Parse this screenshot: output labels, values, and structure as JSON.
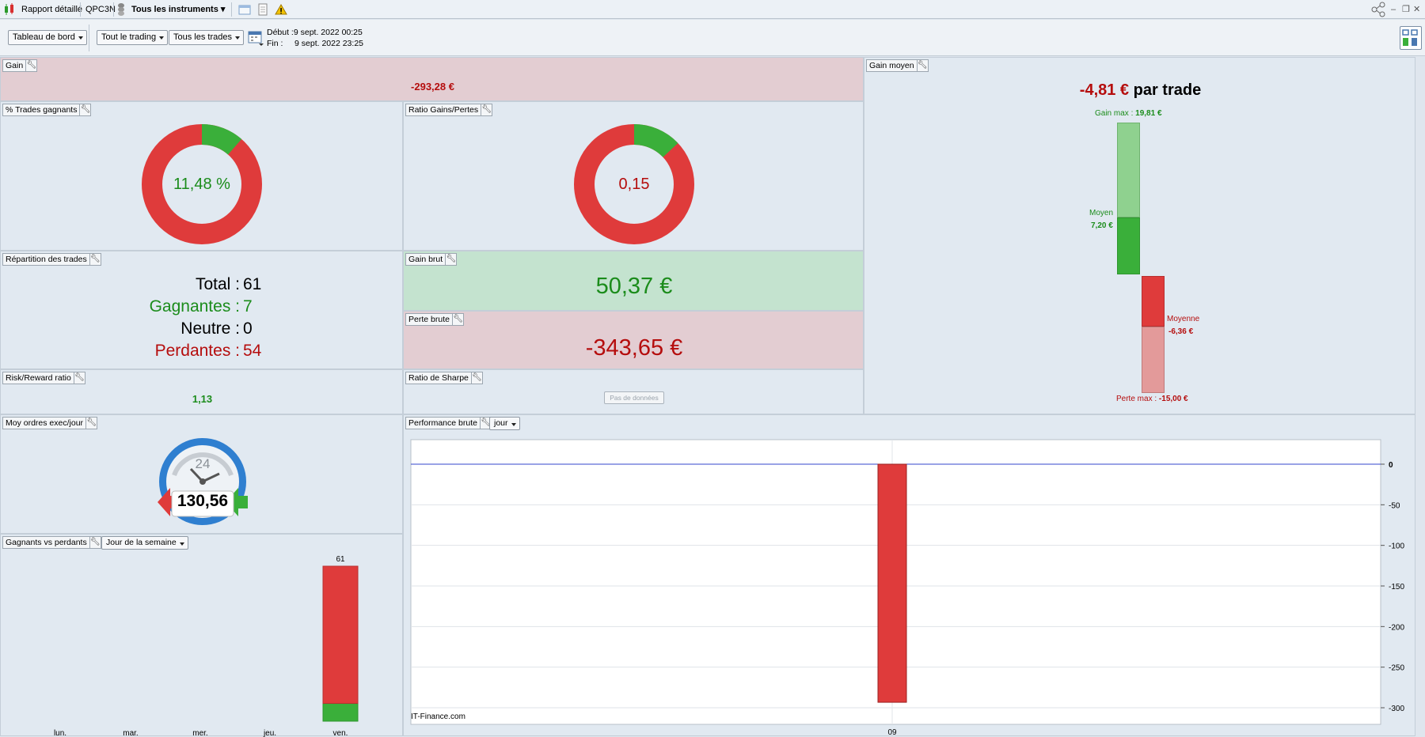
{
  "titlebar": {
    "app_label": "Rapport détaillé",
    "account": "QPC3N",
    "instruments": "Tous les instruments"
  },
  "toolbar": {
    "dashboard": "Tableau de bord",
    "trading": "Tout le trading",
    "trades": "Tous les trades",
    "start": "Début :9 sept. 2022 00:25",
    "end": "Fin :     9 sept. 2022 23:25"
  },
  "gain": {
    "title": "Gain",
    "value": "-293,28 €"
  },
  "winning_pct": {
    "title": "% Trades gagnants",
    "value": "11,48 %",
    "fraction": 0.1148
  },
  "ratio": {
    "title": "Ratio Gains/Pertes",
    "value": "0,15",
    "fraction": 0.13
  },
  "distribution": {
    "title": "Répartition des trades",
    "total_label": "Total :",
    "total": "61",
    "win_label": "Gagnantes :",
    "win": "7",
    "neutral_label": "Neutre :",
    "neutral": "0",
    "loss_label": "Perdantes :",
    "loss": "54"
  },
  "gross_gain": {
    "title": "Gain brut",
    "value": "50,37 €"
  },
  "gross_loss": {
    "title": "Perte brute",
    "value": "-343,65 €"
  },
  "risk_reward": {
    "title": "Risk/Reward ratio",
    "value": "1,13"
  },
  "sharpe": {
    "title": "Ratio de Sharpe",
    "button": "Pas de données"
  },
  "avg_gain": {
    "title": "Gain moyen",
    "value": "-4,81 €",
    "suffix": "par trade",
    "max_gain_label": "Gain max :",
    "max_gain": "19,81 €",
    "avg_label": "Moyen",
    "avg": "7,20 €",
    "avg_loss_label": "Moyenne",
    "avg_loss": "-6,36 €",
    "max_loss_label": "Perte max :",
    "max_loss": "-15,00 €"
  },
  "orders": {
    "title": "Moy ordres exec/jour",
    "value": "130,56",
    "dial": "24"
  },
  "winners_losers": {
    "title": "Gagnants vs perdants",
    "period": "Jour de la semaine"
  },
  "performance": {
    "title": "Performance brute",
    "period": "jour",
    "watermark": "IT-Finance.com"
  },
  "colors": {
    "red": "#df3b3b",
    "green": "#3aaf3a",
    "light_green": "#8fd18f",
    "light_red": "#e39a9a"
  },
  "chart_data": [
    {
      "type": "bar",
      "title": "Gagnants vs perdants",
      "categories": [
        "lun.",
        "mar.",
        "mer.",
        "jeu.",
        "ven."
      ],
      "series": [
        {
          "name": "Perdants",
          "values": [
            0,
            0,
            0,
            0,
            54
          ]
        },
        {
          "name": "Gagnants",
          "values": [
            0,
            0,
            0,
            0,
            7
          ]
        }
      ],
      "totals": [
        0,
        0,
        0,
        0,
        61
      ],
      "total_labels": [
        "",
        "",
        "",
        "",
        "61"
      ]
    },
    {
      "type": "bar",
      "title": "Performance brute",
      "categories": [
        "09"
      ],
      "values": [
        -293.28
      ],
      "ylim": [
        -300,
        0
      ],
      "yticks": [
        0,
        -50,
        -100,
        -150,
        -200,
        -250,
        -300
      ]
    }
  ]
}
